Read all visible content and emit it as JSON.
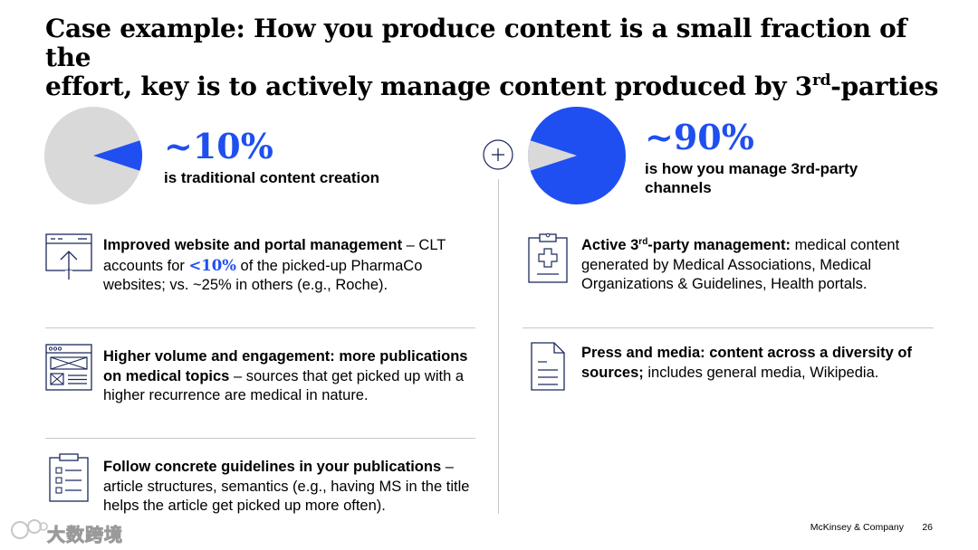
{
  "title": {
    "line1": "Case example: How you produce content is a small fraction of the",
    "line2_pre": "effort, key is to actively manage content produced by 3",
    "line2_sup": "rd",
    "line2_post": "-parties"
  },
  "left_stat": {
    "value": "~10%",
    "caption": "is traditional content creation",
    "fraction": 0.1
  },
  "right_stat": {
    "value": "~90%",
    "caption_line1": "is how you manage 3rd-party",
    "caption_line2": "channels",
    "fraction": 0.9
  },
  "colors": {
    "accent": "#1f4ff0",
    "pie_grey": "#d9d9d9",
    "icon_navy": "#1a2a5e",
    "divider": "#c8c8c8"
  },
  "left_items": [
    {
      "icon": "website-upload-icon",
      "bold": "Improved website and portal management",
      "text_a": " – CLT accounts for ",
      "highlight": "<10%",
      "text_b": " of the picked-up PharmaCo websites; vs. ~25% in others (e.g., Roche)."
    },
    {
      "icon": "browser-layout-icon",
      "bold": "Higher volume and engagement: more publications on medical topics",
      "text": " – sources that get picked up with a higher recurrence are medical in nature."
    },
    {
      "icon": "checklist-clipboard-icon",
      "bold": "Follow concrete guidelines in your publications",
      "text": " – article structures, semantics (e.g., having MS in the title helps the article get picked up more often)."
    }
  ],
  "right_items": [
    {
      "icon": "medical-clipboard-icon",
      "bold_pre": "Active 3",
      "bold_sup": "rd",
      "bold_post": "-party management:",
      "text": " medical content generated by Medical Associations, Medical Organizations & Guidelines, Health portals."
    },
    {
      "icon": "document-icon",
      "bold": "Press and media: content across a diversity of sources;",
      "text": " includes general media, Wikipedia."
    }
  ],
  "footer": {
    "brand": "McKinsey & Company",
    "page": "26"
  },
  "watermark": {
    "text": "大数跨境"
  }
}
